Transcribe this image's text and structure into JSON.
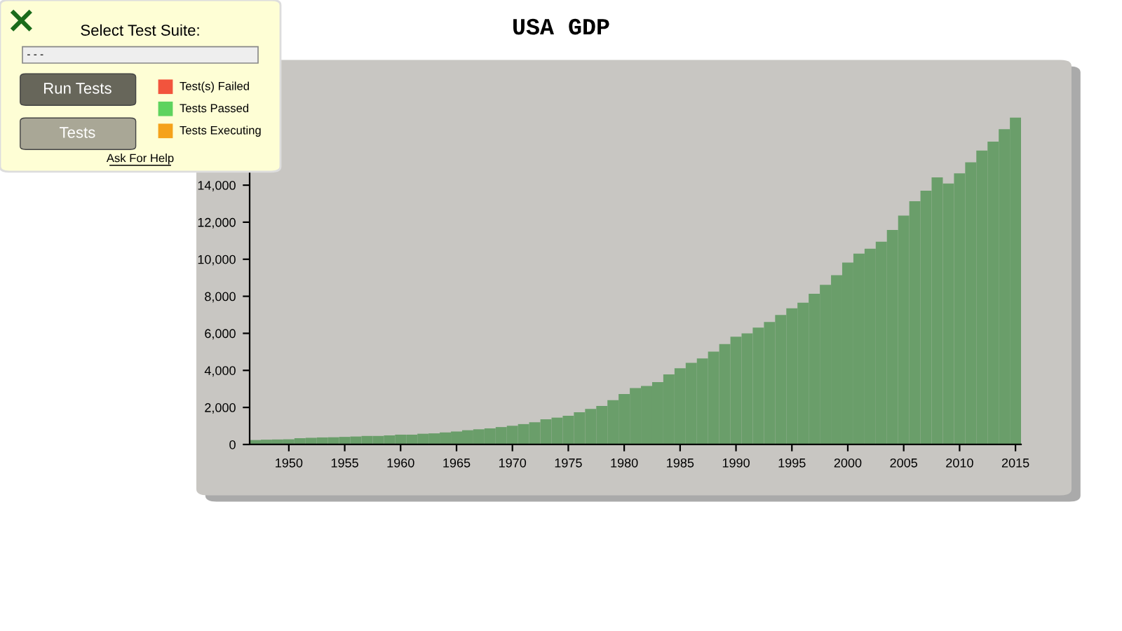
{
  "chart_data": {
    "type": "bar",
    "title": "USA GDP",
    "color": "#6a9e6a",
    "x": [
      "1947-01",
      "1948-01",
      "1949-01",
      "1950-01",
      "1951-01",
      "1952-01",
      "1953-01",
      "1954-01",
      "1955-01",
      "1956-01",
      "1957-01",
      "1958-01",
      "1959-01",
      "1960-01",
      "1961-01",
      "1962-01",
      "1963-01",
      "1964-01",
      "1965-01",
      "1966-01",
      "1967-01",
      "1968-01",
      "1969-01",
      "1970-01",
      "1971-01",
      "1972-01",
      "1973-01",
      "1974-01",
      "1975-01",
      "1976-01",
      "1977-01",
      "1978-01",
      "1979-01",
      "1980-01",
      "1981-01",
      "1982-01",
      "1983-01",
      "1984-01",
      "1985-01",
      "1986-01",
      "1987-01",
      "1988-01",
      "1989-01",
      "1990-01",
      "1991-01",
      "1992-01",
      "1993-01",
      "1994-01",
      "1995-01",
      "1996-01",
      "1997-01",
      "1998-01",
      "1999-01",
      "2000-01",
      "2001-01",
      "2002-01",
      "2003-01",
      "2004-01",
      "2005-01",
      "2006-01",
      "2007-01",
      "2008-01",
      "2009-01",
      "2010-01",
      "2011-01",
      "2012-01",
      "2013-01",
      "2014-01",
      "2015-01"
    ],
    "values": [
      240,
      260,
      270,
      280,
      340,
      360,
      380,
      390,
      410,
      430,
      460,
      460,
      490,
      530,
      530,
      580,
      600,
      650,
      700,
      770,
      820,
      870,
      940,
      1010,
      1100,
      1200,
      1360,
      1450,
      1550,
      1740,
      1920,
      2080,
      2390,
      2720,
      3050,
      3160,
      3370,
      3780,
      4110,
      4410,
      4640,
      5010,
      5420,
      5820,
      6000,
      6310,
      6610,
      6990,
      7350,
      7650,
      8140,
      8620,
      9140,
      9820,
      10300,
      10570,
      10950,
      11580,
      12360,
      13130,
      13700,
      14420,
      14090,
      14640,
      15230,
      15870,
      16350,
      17020,
      17650
    ],
    "xlim": [
      "1946-07",
      "2015-07"
    ],
    "xticks": [
      {
        "value": "1950-01",
        "label": "1950"
      },
      {
        "value": "1955-01",
        "label": "1955"
      },
      {
        "value": "1960-01",
        "label": "1960"
      },
      {
        "value": "1965-01",
        "label": "1965"
      },
      {
        "value": "1970-01",
        "label": "1970"
      },
      {
        "value": "1975-01",
        "label": "1975"
      },
      {
        "value": "1980-01",
        "label": "1980"
      },
      {
        "value": "1985-01",
        "label": "1985"
      },
      {
        "value": "1990-01",
        "label": "1990"
      },
      {
        "value": "1995-01",
        "label": "1995"
      },
      {
        "value": "2000-01",
        "label": "2000"
      },
      {
        "value": "2005-01",
        "label": "2005"
      },
      {
        "value": "2010-01",
        "label": "2010"
      },
      {
        "value": "2015-01",
        "label": "2015"
      }
    ],
    "ylim": [
      0,
      18000
    ],
    "yticks": [
      {
        "value": 0,
        "label": "0"
      },
      {
        "value": 2000,
        "label": "2,000"
      },
      {
        "value": 4000,
        "label": "4,000"
      },
      {
        "value": 6000,
        "label": "6,000"
      },
      {
        "value": 8000,
        "label": "8,000"
      },
      {
        "value": 10000,
        "label": "10,000"
      },
      {
        "value": 12000,
        "label": "12,000"
      },
      {
        "value": 14000,
        "label": "14,000"
      }
    ],
    "grid": false,
    "legend": false,
    "annotations": [
      "Select Test Suite:",
      "- - -",
      "Run Tests",
      "Tests",
      "Test(s) Failed",
      "Tests Passed",
      "Tests Executing",
      "Ask For Help"
    ]
  }
}
